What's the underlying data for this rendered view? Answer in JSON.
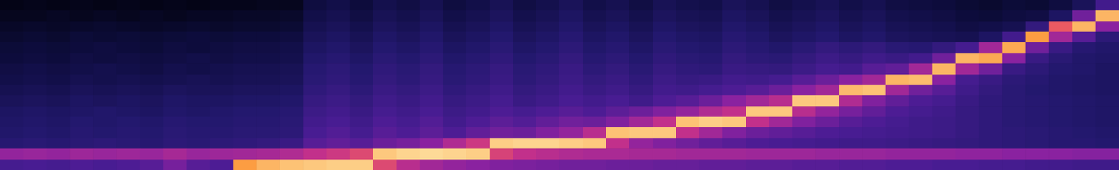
{
  "chart_data": {
    "type": "heatmap",
    "tick_labels": false,
    "color_range": [
      0,
      100
    ],
    "cells": [
      [
        4,
        5,
        4,
        5,
        4,
        5,
        4,
        5,
        4,
        5,
        5,
        6,
        6,
        14,
        16,
        13,
        17,
        15,
        18,
        14,
        16,
        19,
        15,
        17,
        20,
        16,
        18,
        15,
        19,
        17,
        16,
        20,
        18,
        15,
        17,
        19,
        16,
        18,
        15,
        14,
        13,
        11,
        10,
        12,
        11,
        14,
        20,
        35
      ],
      [
        6,
        6,
        7,
        6,
        7,
        6,
        7,
        6,
        7,
        7,
        8,
        8,
        9,
        16,
        18,
        15,
        19,
        17,
        20,
        16,
        18,
        21,
        17,
        19,
        22,
        18,
        20,
        17,
        21,
        19,
        18,
        22,
        20,
        17,
        19,
        21,
        18,
        20,
        17,
        16,
        15,
        13,
        12,
        14,
        15,
        22,
        45,
        92
      ],
      [
        8,
        9,
        8,
        9,
        10,
        9,
        8,
        9,
        10,
        9,
        10,
        10,
        11,
        18,
        20,
        17,
        21,
        19,
        22,
        18,
        20,
        23,
        19,
        21,
        24,
        20,
        22,
        19,
        23,
        21,
        20,
        24,
        22,
        19,
        21,
        23,
        20,
        22,
        19,
        18,
        17,
        15,
        16,
        18,
        30,
        75,
        92,
        50
      ],
      [
        10,
        11,
        10,
        12,
        11,
        12,
        11,
        12,
        13,
        12,
        13,
        13,
        14,
        20,
        22,
        19,
        23,
        21,
        24,
        20,
        22,
        25,
        21,
        23,
        26,
        22,
        24,
        21,
        25,
        23,
        22,
        26,
        24,
        21,
        23,
        25,
        22,
        24,
        21,
        20,
        19,
        18,
        22,
        35,
        88,
        55,
        40,
        28
      ],
      [
        12,
        13,
        12,
        13,
        14,
        13,
        12,
        14,
        13,
        14,
        15,
        15,
        16,
        22,
        24,
        21,
        25,
        23,
        26,
        22,
        24,
        27,
        23,
        25,
        28,
        24,
        26,
        23,
        27,
        25,
        24,
        28,
        26,
        24,
        27,
        30,
        28,
        30,
        27,
        26,
        30,
        36,
        55,
        90,
        45,
        32,
        26,
        24
      ],
      [
        13,
        14,
        13,
        15,
        14,
        15,
        14,
        15,
        16,
        15,
        16,
        16,
        17,
        24,
        26,
        23,
        27,
        25,
        28,
        24,
        26,
        29,
        25,
        27,
        30,
        26,
        28,
        25,
        29,
        27,
        26,
        30,
        28,
        27,
        30,
        33,
        31,
        34,
        32,
        35,
        45,
        92,
        90,
        50,
        32,
        27,
        24,
        23
      ],
      [
        15,
        16,
        15,
        16,
        17,
        16,
        15,
        17,
        16,
        17,
        18,
        18,
        19,
        26,
        28,
        25,
        29,
        27,
        30,
        26,
        28,
        31,
        27,
        29,
        32,
        28,
        30,
        27,
        31,
        29,
        28,
        32,
        31,
        30,
        33,
        36,
        35,
        40,
        42,
        55,
        92,
        55,
        45,
        32,
        28,
        25,
        24,
        22
      ],
      [
        16,
        17,
        16,
        18,
        17,
        18,
        17,
        18,
        19,
        18,
        19,
        19,
        20,
        27,
        29,
        26,
        30,
        28,
        31,
        27,
        29,
        32,
        28,
        30,
        33,
        30,
        32,
        29,
        33,
        31,
        32,
        35,
        34,
        36,
        40,
        44,
        50,
        55,
        92,
        93,
        50,
        36,
        32,
        28,
        26,
        24,
        23,
        22
      ],
      [
        18,
        19,
        18,
        20,
        19,
        20,
        19,
        21,
        20,
        20,
        21,
        21,
        22,
        29,
        31,
        28,
        32,
        30,
        33,
        29,
        31,
        34,
        30,
        32,
        35,
        32,
        34,
        31,
        35,
        34,
        36,
        38,
        40,
        44,
        50,
        55,
        93,
        94,
        55,
        45,
        40,
        34,
        30,
        27,
        25,
        24,
        23,
        22
      ],
      [
        20,
        21,
        20,
        22,
        21,
        22,
        21,
        23,
        22,
        22,
        23,
        23,
        24,
        31,
        33,
        30,
        34,
        32,
        35,
        31,
        33,
        36,
        32,
        34,
        37,
        35,
        37,
        34,
        38,
        40,
        44,
        50,
        55,
        60,
        95,
        95,
        58,
        48,
        42,
        38,
        36,
        32,
        29,
        27,
        26,
        25,
        24,
        23
      ],
      [
        22,
        23,
        22,
        23,
        24,
        23,
        22,
        24,
        23,
        24,
        25,
        25,
        26,
        33,
        35,
        32,
        36,
        34,
        37,
        33,
        35,
        38,
        36,
        38,
        40,
        38,
        41,
        44,
        48,
        52,
        58,
        62,
        95,
        95,
        60,
        52,
        46,
        42,
        38,
        36,
        34,
        31,
        29,
        27,
        26,
        25,
        24,
        23
      ],
      [
        23,
        24,
        23,
        25,
        24,
        25,
        24,
        26,
        25,
        25,
        26,
        26,
        27,
        35,
        37,
        34,
        38,
        36,
        39,
        35,
        38,
        41,
        39,
        42,
        45,
        44,
        48,
        55,
        62,
        94,
        96,
        95,
        62,
        55,
        48,
        44,
        40,
        38,
        36,
        34,
        33,
        31,
        29,
        27,
        26,
        25,
        24,
        23
      ],
      [
        24,
        25,
        24,
        26,
        25,
        26,
        25,
        27,
        26,
        26,
        27,
        27,
        28,
        37,
        39,
        36,
        40,
        38,
        41,
        38,
        42,
        45,
        44,
        48,
        52,
        60,
        94,
        95,
        95,
        62,
        55,
        48,
        44,
        42,
        40,
        38,
        37,
        36,
        35,
        34,
        33,
        31,
        29,
        28,
        27,
        26,
        25,
        24
      ],
      [
        26,
        27,
        26,
        27,
        28,
        27,
        26,
        28,
        27,
        28,
        29,
        30,
        32,
        40,
        42,
        40,
        44,
        46,
        50,
        58,
        65,
        96,
        97,
        97,
        96,
        95,
        62,
        52,
        48,
        45,
        42,
        40,
        38,
        37,
        36,
        35,
        34,
        34,
        33,
        32,
        31,
        30,
        29,
        28,
        27,
        26,
        26,
        25
      ],
      [
        52,
        53,
        52,
        54,
        53,
        54,
        53,
        56,
        53,
        54,
        55,
        56,
        58,
        62,
        65,
        70,
        95,
        97,
        98,
        97,
        96,
        68,
        62,
        60,
        58,
        57,
        57,
        56,
        56,
        55,
        55,
        55,
        54,
        54,
        54,
        53,
        53,
        53,
        52,
        52,
        52,
        51,
        51,
        50,
        50,
        50,
        49,
        49
      ],
      [
        36,
        37,
        36,
        38,
        37,
        38,
        40,
        46,
        40,
        38,
        88,
        92,
        94,
        95,
        96,
        96,
        70,
        60,
        55,
        52,
        50,
        48,
        47,
        46,
        45,
        45,
        44,
        44,
        43,
        43,
        42,
        42,
        41,
        41,
        40,
        40,
        39,
        39,
        38,
        38,
        37,
        37,
        36,
        36,
        35,
        35,
        34,
        34
      ]
    ]
  }
}
